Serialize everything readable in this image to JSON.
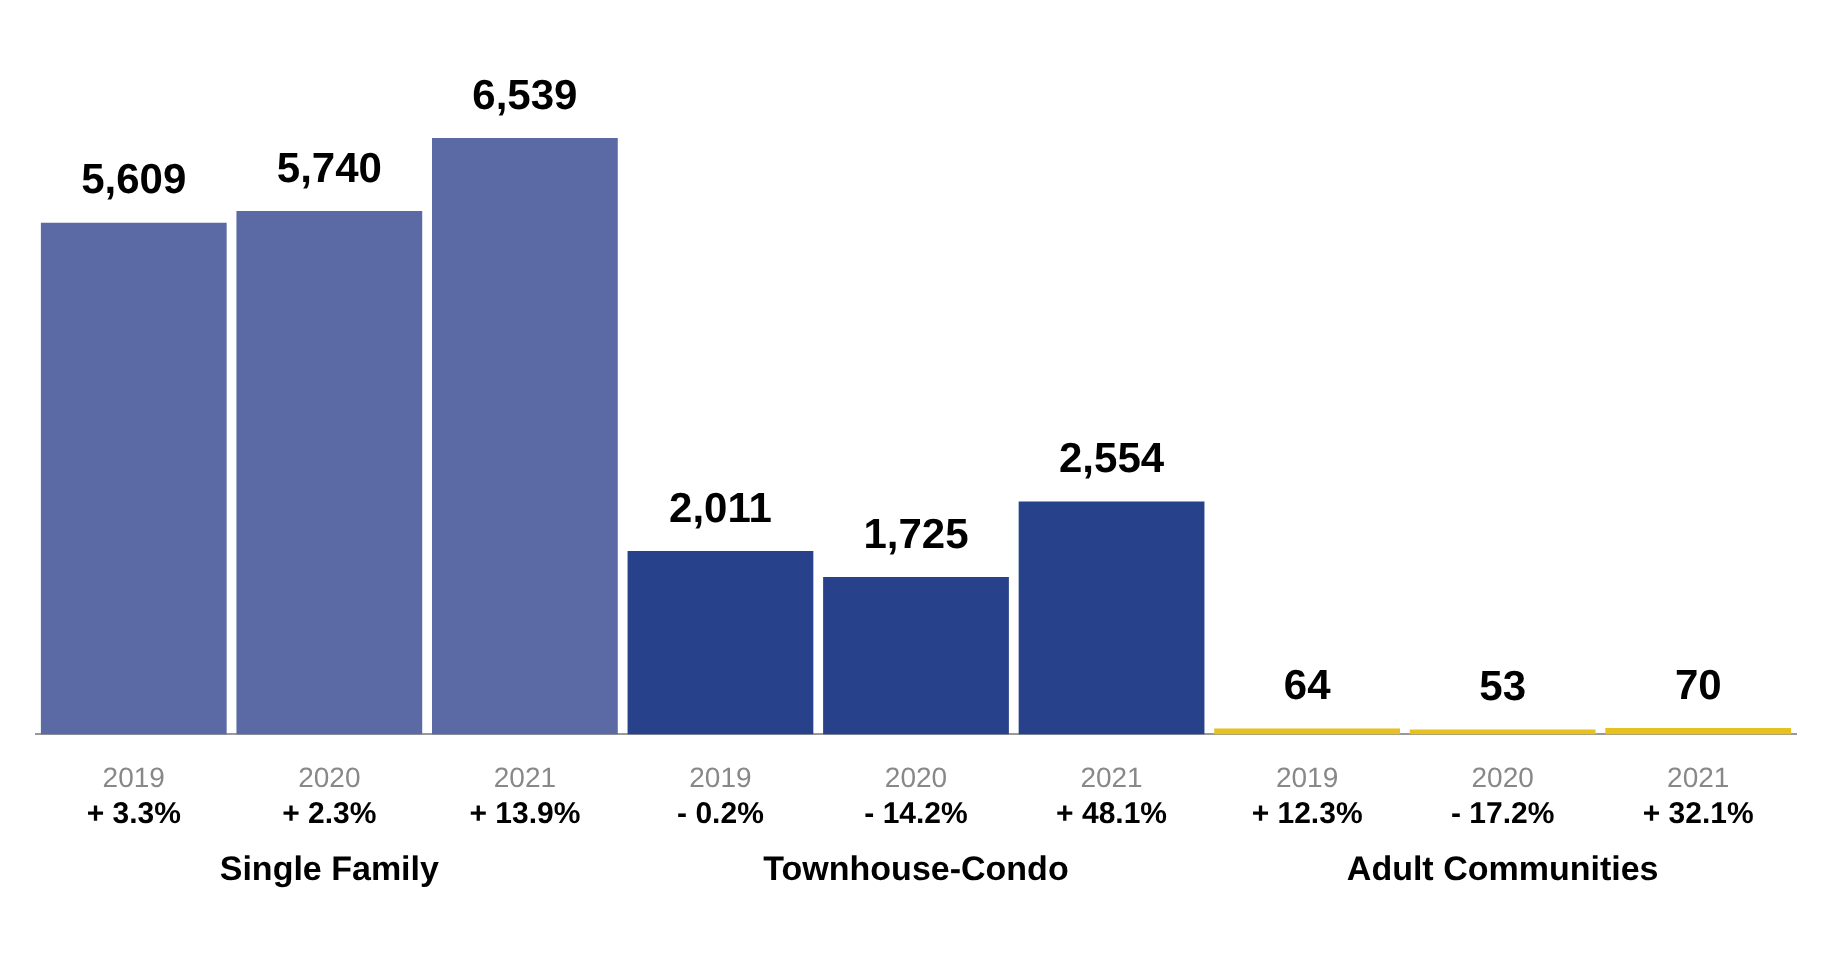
{
  "chart_data": {
    "type": "bar",
    "categories": [
      "2019",
      "2020",
      "2021",
      "2019",
      "2020",
      "2021",
      "2019",
      "2020",
      "2021"
    ],
    "series": [
      {
        "color": "#5b6aa5",
        "values": [
          5609,
          5740,
          6539,
          null,
          null,
          null,
          null,
          null,
          null
        ],
        "value_labels": [
          "5,609",
          "5,740",
          "6,539",
          null,
          null,
          null,
          null,
          null,
          null
        ]
      },
      {
        "color": "#27418b",
        "values": [
          null,
          null,
          null,
          2011,
          1725,
          2554,
          null,
          null,
          null
        ],
        "value_labels": [
          null,
          null,
          null,
          "2,011",
          "1,725",
          "2,554",
          null,
          null,
          null
        ]
      },
      {
        "color": "#e6c11f",
        "values": [
          null,
          null,
          null,
          null,
          null,
          null,
          64,
          53,
          70
        ],
        "value_labels": [
          null,
          null,
          null,
          null,
          null,
          null,
          "64",
          "53",
          "70"
        ]
      }
    ],
    "annotations": [
      "+ 3.3%",
      "+ 2.3%",
      "+ 13.9%",
      "- 0.2%",
      "- 14.2%",
      "+ 48.1%",
      "+ 12.3%",
      "- 17.2%",
      "+ 32.1%",
      "Single Family",
      "Townhouse-Condo",
      "Adult Communities"
    ],
    "grid": false
  }
}
